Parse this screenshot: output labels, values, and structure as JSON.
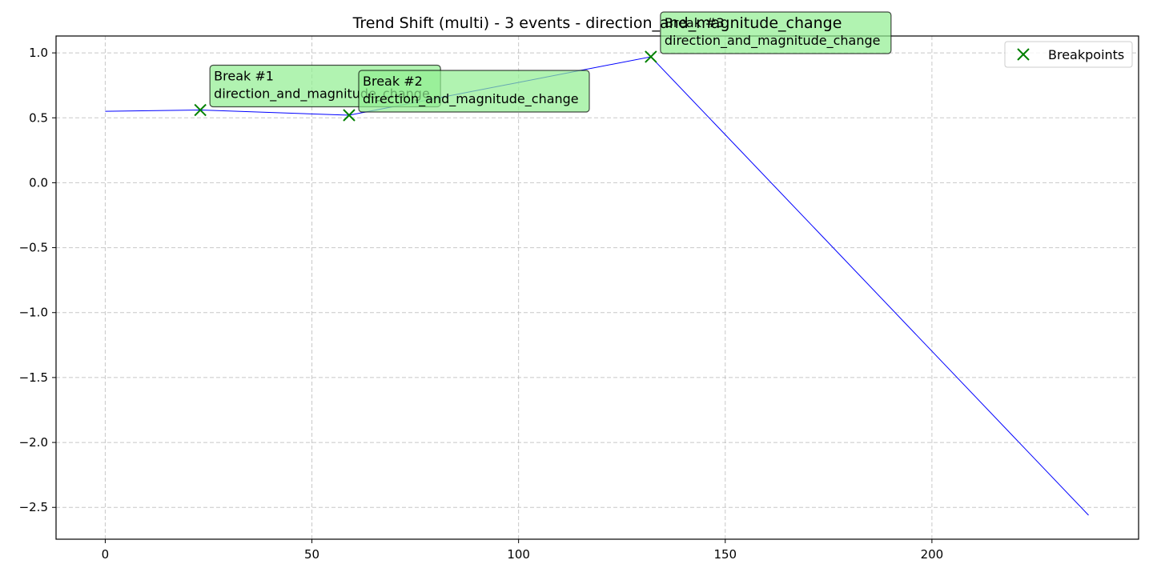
{
  "chart_data": {
    "type": "line",
    "title": "Trend Shift (multi) - 3 events - direction_and_magnitude_change",
    "xlabel": "",
    "ylabel": "",
    "xlim": [
      -11.9,
      250
    ],
    "ylim": [
      -2.745,
      1.13
    ],
    "x_ticks": [
      0,
      50,
      100,
      150,
      200
    ],
    "x_tick_labels": [
      "0",
      "50",
      "100",
      "150",
      "200"
    ],
    "y_ticks": [
      1.0,
      0.5,
      0.0,
      -0.5,
      -1.0,
      -1.5,
      -2.0,
      -2.5
    ],
    "y_tick_labels": [
      "1.0",
      "0.5",
      "0.0",
      "−0.5",
      "−1.0",
      "−1.5",
      "−2.0",
      "−2.5"
    ],
    "grid": true,
    "legend_position": "top-right",
    "series": [
      {
        "color": "#0000ff",
        "points": [
          [
            0,
            0.55
          ],
          [
            23,
            0.56
          ],
          [
            59,
            0.52
          ],
          [
            132,
            0.97
          ],
          [
            237.9,
            -2.56
          ]
        ]
      }
    ],
    "breakpoints": {
      "name": "Breakpoints",
      "color": "#008000",
      "points": [
        [
          23,
          0.56
        ],
        [
          59,
          0.52
        ],
        [
          132,
          0.97
        ]
      ]
    },
    "annotations": [
      {
        "line1": "Break #1",
        "line2": "direction_and_magnitude_change"
      },
      {
        "line1": "Break #2",
        "line2": "direction_and_magnitude_change"
      },
      {
        "line1": "Break #3",
        "line2": "direction_and_magnitude_change"
      }
    ],
    "annotation_box_color": "#90ee90"
  }
}
